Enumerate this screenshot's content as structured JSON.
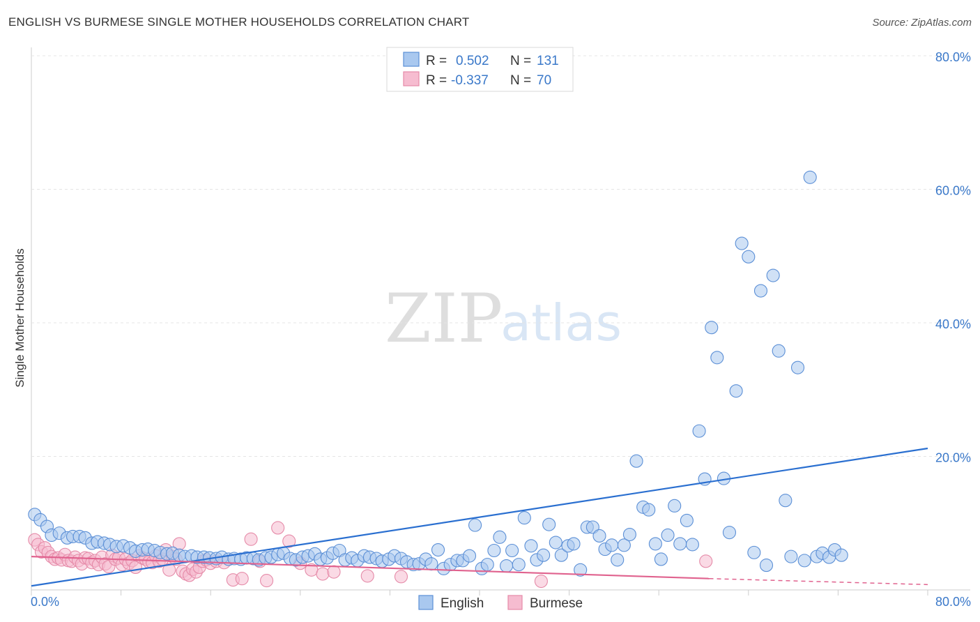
{
  "title": "ENGLISH VS BURMESE SINGLE MOTHER HOUSEHOLDS CORRELATION CHART",
  "source": "Source: ZipAtlas.com",
  "watermark": {
    "zip": "ZIP",
    "atlas": "atlas"
  },
  "legend": {
    "english": {
      "r_label": "R =",
      "r_value": "0.502",
      "n_label": "N =",
      "n_value": "131"
    },
    "burmese": {
      "r_label": "R =",
      "r_value": "-0.337",
      "n_label": "N =",
      "n_value": "70"
    }
  },
  "bottom_legend": {
    "english": "English",
    "burmese": "Burmese"
  },
  "colors": {
    "english_fill": "#a9c8ef",
    "english_stroke": "#5b8fd6",
    "english_line": "#2a6fd0",
    "burmese_fill": "#f6bcd0",
    "burmese_stroke": "#e58aa8",
    "burmese_line": "#e0628e",
    "grid": "#e4e4e4",
    "tick_label": "#3a78c9"
  },
  "chart_data": {
    "type": "scatter",
    "title": "ENGLISH VS BURMESE SINGLE MOTHER HOUSEHOLDS CORRELATION CHART",
    "xlabel": "",
    "ylabel": "Single Mother Households",
    "xlim": [
      0,
      80
    ],
    "ylim": [
      0,
      80
    ],
    "x_tick_labels": [
      "0.0%",
      "80.0%"
    ],
    "y_ticks": [
      20,
      40,
      60,
      80
    ],
    "y_tick_labels": [
      "20.0%",
      "40.0%",
      "60.0%",
      "80.0%"
    ],
    "series": [
      {
        "name": "English",
        "r": 0.502,
        "n": 131,
        "trend": {
          "x": [
            0,
            80
          ],
          "y": [
            0.6,
            21.2
          ]
        },
        "points": [
          [
            0.3,
            11.3
          ],
          [
            0.8,
            10.5
          ],
          [
            1.4,
            9.5
          ],
          [
            1.8,
            8.2
          ],
          [
            2.5,
            8.5
          ],
          [
            3.2,
            7.8
          ],
          [
            3.7,
            8.0
          ],
          [
            4.3,
            8.0
          ],
          [
            4.8,
            7.8
          ],
          [
            5.4,
            7.0
          ],
          [
            5.9,
            7.2
          ],
          [
            6.5,
            7.0
          ],
          [
            7.0,
            6.8
          ],
          [
            7.6,
            6.5
          ],
          [
            8.2,
            6.6
          ],
          [
            8.8,
            6.3
          ],
          [
            9.3,
            5.8
          ],
          [
            9.9,
            6.0
          ],
          [
            10.4,
            6.1
          ],
          [
            11.0,
            5.9
          ],
          [
            11.5,
            5.6
          ],
          [
            12.1,
            5.4
          ],
          [
            12.6,
            5.5
          ],
          [
            13.2,
            5.2
          ],
          [
            13.7,
            5.0
          ],
          [
            14.3,
            5.1
          ],
          [
            14.8,
            4.9
          ],
          [
            15.4,
            4.9
          ],
          [
            15.9,
            4.8
          ],
          [
            16.5,
            4.7
          ],
          [
            17.0,
            4.9
          ],
          [
            17.6,
            4.6
          ],
          [
            18.1,
            4.7
          ],
          [
            18.7,
            4.6
          ],
          [
            19.2,
            4.8
          ],
          [
            19.8,
            4.7
          ],
          [
            20.3,
            4.5
          ],
          [
            20.9,
            4.8
          ],
          [
            21.4,
            4.9
          ],
          [
            22.0,
            5.3
          ],
          [
            22.5,
            5.5
          ],
          [
            23.1,
            4.7
          ],
          [
            23.6,
            4.5
          ],
          [
            24.2,
            4.9
          ],
          [
            24.7,
            5.1
          ],
          [
            25.3,
            5.4
          ],
          [
            25.8,
            4.6
          ],
          [
            26.4,
            4.8
          ],
          [
            26.9,
            5.5
          ],
          [
            27.5,
            5.9
          ],
          [
            28.0,
            4.5
          ],
          [
            28.6,
            4.8
          ],
          [
            29.1,
            4.4
          ],
          [
            29.7,
            5.1
          ],
          [
            30.2,
            4.9
          ],
          [
            30.8,
            4.7
          ],
          [
            31.3,
            4.3
          ],
          [
            31.9,
            4.6
          ],
          [
            32.4,
            5.1
          ],
          [
            33.0,
            4.7
          ],
          [
            33.5,
            4.2
          ],
          [
            34.1,
            3.8
          ],
          [
            34.6,
            3.9
          ],
          [
            35.2,
            4.6
          ],
          [
            35.7,
            3.9
          ],
          [
            36.3,
            6.0
          ],
          [
            36.8,
            3.2
          ],
          [
            37.4,
            3.8
          ],
          [
            38.0,
            4.4
          ],
          [
            38.5,
            4.4
          ],
          [
            39.1,
            5.1
          ],
          [
            39.6,
            9.7
          ],
          [
            40.2,
            3.2
          ],
          [
            40.7,
            3.8
          ],
          [
            41.3,
            5.9
          ],
          [
            41.8,
            7.9
          ],
          [
            42.4,
            3.6
          ],
          [
            42.9,
            5.9
          ],
          [
            43.5,
            3.8
          ],
          [
            44.0,
            10.8
          ],
          [
            44.6,
            6.6
          ],
          [
            45.1,
            4.5
          ],
          [
            45.7,
            5.2
          ],
          [
            46.2,
            9.8
          ],
          [
            46.8,
            7.1
          ],
          [
            47.3,
            5.2
          ],
          [
            47.9,
            6.6
          ],
          [
            48.4,
            6.9
          ],
          [
            49.0,
            3.0
          ],
          [
            49.6,
            9.4
          ],
          [
            50.1,
            9.4
          ],
          [
            50.7,
            8.1
          ],
          [
            51.2,
            6.1
          ],
          [
            51.8,
            6.7
          ],
          [
            52.3,
            4.5
          ],
          [
            52.9,
            6.7
          ],
          [
            53.4,
            8.3
          ],
          [
            54.0,
            19.3
          ],
          [
            54.6,
            12.4
          ],
          [
            55.1,
            12.0
          ],
          [
            55.7,
            6.9
          ],
          [
            56.2,
            4.6
          ],
          [
            56.8,
            8.2
          ],
          [
            57.4,
            12.6
          ],
          [
            57.9,
            6.9
          ],
          [
            58.5,
            10.4
          ],
          [
            59.0,
            6.8
          ],
          [
            59.6,
            23.8
          ],
          [
            60.1,
            16.6
          ],
          [
            60.7,
            39.3
          ],
          [
            61.2,
            34.8
          ],
          [
            61.8,
            16.7
          ],
          [
            62.3,
            8.6
          ],
          [
            62.9,
            29.8
          ],
          [
            63.4,
            51.9
          ],
          [
            64.0,
            49.9
          ],
          [
            64.5,
            5.6
          ],
          [
            65.1,
            44.8
          ],
          [
            65.6,
            3.7
          ],
          [
            66.2,
            47.1
          ],
          [
            66.7,
            35.8
          ],
          [
            67.3,
            13.4
          ],
          [
            67.8,
            5.0
          ],
          [
            68.4,
            33.3
          ],
          [
            69.0,
            4.4
          ],
          [
            69.5,
            61.8
          ],
          [
            70.1,
            5.0
          ],
          [
            70.6,
            5.5
          ],
          [
            71.2,
            4.9
          ],
          [
            71.7,
            6.0
          ],
          [
            72.3,
            5.2
          ]
        ]
      },
      {
        "name": "Burmese",
        "r": -0.337,
        "n": 70,
        "trend": {
          "x": [
            0,
            60.5
          ],
          "y": [
            5.0,
            1.7
          ]
        },
        "trend_dashed": {
          "x": [
            60.5,
            80
          ],
          "y": [
            1.7,
            0.8
          ]
        },
        "points": [
          [
            0.3,
            7.5
          ],
          [
            0.6,
            6.8
          ],
          [
            0.9,
            5.7
          ],
          [
            1.2,
            6.3
          ],
          [
            1.5,
            5.6
          ],
          [
            1.8,
            5.0
          ],
          [
            2.1,
            4.6
          ],
          [
            2.4,
            4.8
          ],
          [
            2.7,
            4.5
          ],
          [
            3.0,
            5.3
          ],
          [
            3.3,
            4.4
          ],
          [
            3.6,
            4.3
          ],
          [
            3.9,
            4.9
          ],
          [
            4.2,
            4.4
          ],
          [
            4.5,
            3.9
          ],
          [
            4.8,
            4.8
          ],
          [
            5.1,
            4.7
          ],
          [
            5.4,
            4.1
          ],
          [
            5.7,
            4.4
          ],
          [
            6.0,
            3.8
          ],
          [
            6.3,
            4.9
          ],
          [
            6.6,
            3.9
          ],
          [
            6.9,
            3.5
          ],
          [
            7.2,
            5.2
          ],
          [
            7.5,
            4.6
          ],
          [
            7.8,
            4.8
          ],
          [
            8.1,
            3.8
          ],
          [
            8.4,
            4.6
          ],
          [
            8.7,
            4.0
          ],
          [
            9.0,
            4.4
          ],
          [
            9.3,
            3.4
          ],
          [
            9.6,
            5.1
          ],
          [
            9.9,
            4.8
          ],
          [
            10.2,
            4.6
          ],
          [
            10.5,
            4.2
          ],
          [
            10.8,
            4.1
          ],
          [
            11.1,
            5.1
          ],
          [
            11.4,
            4.3
          ],
          [
            11.7,
            4.6
          ],
          [
            12.0,
            6.0
          ],
          [
            12.3,
            3.0
          ],
          [
            12.6,
            5.0
          ],
          [
            12.9,
            4.6
          ],
          [
            13.2,
            6.9
          ],
          [
            13.5,
            2.8
          ],
          [
            13.8,
            2.4
          ],
          [
            14.1,
            2.2
          ],
          [
            14.4,
            3.1
          ],
          [
            14.7,
            2.7
          ],
          [
            15.0,
            3.4
          ],
          [
            15.3,
            4.3
          ],
          [
            15.6,
            4.5
          ],
          [
            16.0,
            4.0
          ],
          [
            16.5,
            4.3
          ],
          [
            17.2,
            4.1
          ],
          [
            18.0,
            1.5
          ],
          [
            18.8,
            1.7
          ],
          [
            19.6,
            7.6
          ],
          [
            20.4,
            4.3
          ],
          [
            21.0,
            1.4
          ],
          [
            22.0,
            9.3
          ],
          [
            23.0,
            7.3
          ],
          [
            24.0,
            4.0
          ],
          [
            25.0,
            3.0
          ],
          [
            26.0,
            2.4
          ],
          [
            27.0,
            2.7
          ],
          [
            30.0,
            2.1
          ],
          [
            33.0,
            2.0
          ],
          [
            45.5,
            1.3
          ],
          [
            60.2,
            4.3
          ]
        ]
      }
    ]
  }
}
